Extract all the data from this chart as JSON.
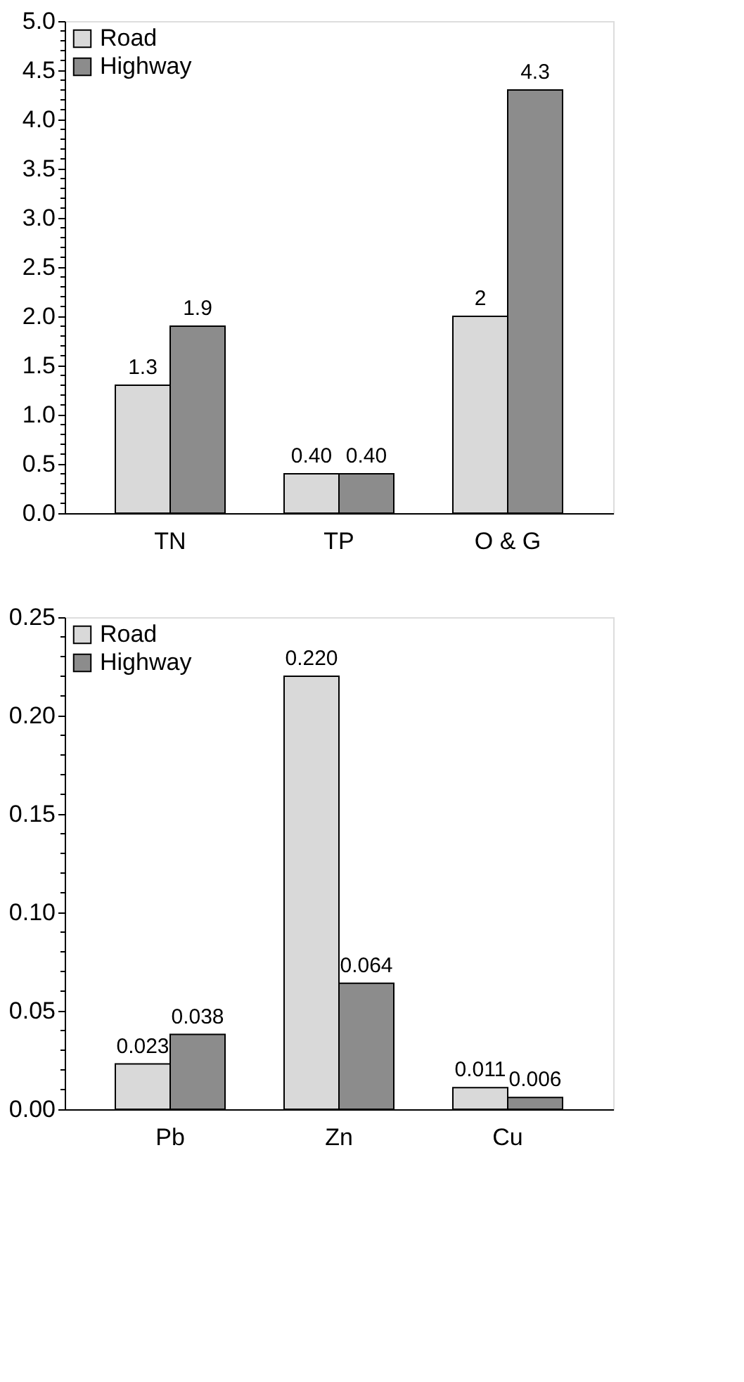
{
  "chart_data": [
    {
      "type": "bar",
      "categories": [
        "TN",
        "TP",
        "O & G"
      ],
      "ylim": [
        0,
        5
      ],
      "yticks": [
        {
          "value": 0.0,
          "label": "0.0"
        },
        {
          "value": 0.1,
          "label": null
        },
        {
          "value": 0.2,
          "label": null
        },
        {
          "value": 0.3,
          "label": null
        },
        {
          "value": 0.4,
          "label": null
        },
        {
          "value": 0.5,
          "label": "0.5"
        },
        {
          "value": 0.6,
          "label": null
        },
        {
          "value": 0.7,
          "label": null
        },
        {
          "value": 0.8,
          "label": null
        },
        {
          "value": 0.9,
          "label": null
        },
        {
          "value": 1.0,
          "label": "1.0"
        },
        {
          "value": 1.1,
          "label": null
        },
        {
          "value": 1.2,
          "label": null
        },
        {
          "value": 1.3,
          "label": null
        },
        {
          "value": 1.4,
          "label": null
        },
        {
          "value": 1.5,
          "label": "1.5"
        },
        {
          "value": 1.6,
          "label": null
        },
        {
          "value": 1.7,
          "label": null
        },
        {
          "value": 1.8,
          "label": null
        },
        {
          "value": 1.9,
          "label": null
        },
        {
          "value": 2.0,
          "label": "2.0"
        },
        {
          "value": 2.1,
          "label": null
        },
        {
          "value": 2.2,
          "label": null
        },
        {
          "value": 2.3,
          "label": null
        },
        {
          "value": 2.4,
          "label": null
        },
        {
          "value": 2.5,
          "label": "2.5"
        },
        {
          "value": 2.6,
          "label": null
        },
        {
          "value": 2.7,
          "label": null
        },
        {
          "value": 2.8,
          "label": null
        },
        {
          "value": 2.9,
          "label": null
        },
        {
          "value": 3.0,
          "label": "3.0"
        },
        {
          "value": 3.1,
          "label": null
        },
        {
          "value": 3.2,
          "label": null
        },
        {
          "value": 3.3,
          "label": null
        },
        {
          "value": 3.4,
          "label": null
        },
        {
          "value": 3.5,
          "label": "3.5"
        },
        {
          "value": 3.6,
          "label": null
        },
        {
          "value": 3.7,
          "label": null
        },
        {
          "value": 3.8,
          "label": null
        },
        {
          "value": 3.9,
          "label": null
        },
        {
          "value": 4.0,
          "label": "4.0"
        },
        {
          "value": 4.1,
          "label": null
        },
        {
          "value": 4.2,
          "label": null
        },
        {
          "value": 4.3,
          "label": null
        },
        {
          "value": 4.4,
          "label": null
        },
        {
          "value": 4.5,
          "label": "4.5"
        },
        {
          "value": 4.6,
          "label": null
        },
        {
          "value": 4.7,
          "label": null
        },
        {
          "value": 4.8,
          "label": null
        },
        {
          "value": 4.9,
          "label": null
        },
        {
          "value": 5.0,
          "label": "5.0"
        }
      ],
      "legend": "top left",
      "grid": false,
      "series": [
        {
          "name": "Road",
          "color": "#d9d9d9",
          "values": [
            1.3,
            0.4,
            2
          ],
          "value_labels": [
            "1.3",
            "0.40",
            "2"
          ]
        },
        {
          "name": "Highway",
          "color": "#8c8c8c",
          "values": [
            1.9,
            0.4,
            4.3
          ],
          "value_labels": [
            "1.9",
            "0.40",
            "4.3"
          ]
        }
      ]
    },
    {
      "type": "bar",
      "categories": [
        "Pb",
        "Zn",
        "Cu"
      ],
      "ylim": [
        0,
        0.25
      ],
      "yticks": [
        {
          "value": 0.0,
          "label": "0.00"
        },
        {
          "value": 0.01,
          "label": null
        },
        {
          "value": 0.02,
          "label": null
        },
        {
          "value": 0.03,
          "label": null
        },
        {
          "value": 0.04,
          "label": null
        },
        {
          "value": 0.05,
          "label": "0.05"
        },
        {
          "value": 0.06,
          "label": null
        },
        {
          "value": 0.07,
          "label": null
        },
        {
          "value": 0.08,
          "label": null
        },
        {
          "value": 0.09,
          "label": null
        },
        {
          "value": 0.1,
          "label": "0.10"
        },
        {
          "value": 0.11,
          "label": null
        },
        {
          "value": 0.12,
          "label": null
        },
        {
          "value": 0.13,
          "label": null
        },
        {
          "value": 0.14,
          "label": null
        },
        {
          "value": 0.15,
          "label": "0.15"
        },
        {
          "value": 0.16,
          "label": null
        },
        {
          "value": 0.17,
          "label": null
        },
        {
          "value": 0.18,
          "label": null
        },
        {
          "value": 0.19,
          "label": null
        },
        {
          "value": 0.2,
          "label": "0.20"
        },
        {
          "value": 0.21,
          "label": null
        },
        {
          "value": 0.22,
          "label": null
        },
        {
          "value": 0.23,
          "label": null
        },
        {
          "value": 0.24,
          "label": null
        },
        {
          "value": 0.25,
          "label": "0.25"
        }
      ],
      "legend": "top left",
      "grid": false,
      "series": [
        {
          "name": "Road",
          "color": "#d9d9d9",
          "values": [
            0.023,
            0.22,
            0.011
          ],
          "value_labels": [
            "0.023",
            "0.220",
            "0.011"
          ]
        },
        {
          "name": "Highway",
          "color": "#8c8c8c",
          "values": [
            0.038,
            0.064,
            0.006
          ],
          "value_labels": [
            "0.038",
            "0.064",
            "0.006"
          ]
        }
      ]
    }
  ]
}
